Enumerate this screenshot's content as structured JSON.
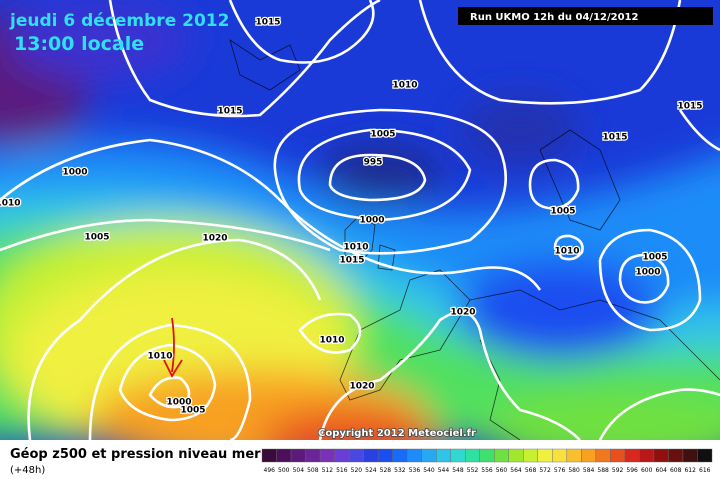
{
  "header": {
    "date": "jeudi 6 décembre 2012",
    "time": "13:00 locale",
    "run": "Run UKMO 12h du 04/12/2012"
  },
  "isobar_labels": [
    "1015",
    "1010",
    "1015",
    "1005",
    "995",
    "1000",
    "1010",
    "1005",
    "1020",
    "1000",
    "1010",
    "1015",
    "1005",
    "1010",
    "1005",
    "1000",
    "1015",
    "1015",
    "1020",
    "1010",
    "1010",
    "1020",
    "1000",
    "1005"
  ],
  "copyright": "Copyright 2012 Meteociel.fr",
  "legend": {
    "title": "Géop z500 et pression niveau mer",
    "lead": "(+48h)",
    "scale": [
      {
        "label": "496",
        "color": "#3a0a3a"
      },
      {
        "label": "500",
        "color": "#4e0e5e"
      },
      {
        "label": "504",
        "color": "#5e1a7a"
      },
      {
        "label": "508",
        "color": "#6a2596"
      },
      {
        "label": "512",
        "color": "#7a30b8"
      },
      {
        "label": "516",
        "color": "#6a3cd8"
      },
      {
        "label": "520",
        "color": "#4a48e0"
      },
      {
        "label": "524",
        "color": "#2a40e0"
      },
      {
        "label": "528",
        "color": "#1a4ef0"
      },
      {
        "label": "532",
        "color": "#1a6af8"
      },
      {
        "label": "536",
        "color": "#1e8cf8"
      },
      {
        "label": "540",
        "color": "#28a8f0"
      },
      {
        "label": "544",
        "color": "#30c4e8"
      },
      {
        "label": "548",
        "color": "#30d8d0"
      },
      {
        "label": "552",
        "color": "#30e0a0"
      },
      {
        "label": "556",
        "color": "#40e070"
      },
      {
        "label": "560",
        "color": "#70e040"
      },
      {
        "label": "564",
        "color": "#a0e830"
      },
      {
        "label": "568",
        "color": "#c8f030"
      },
      {
        "label": "572",
        "color": "#f0f040"
      },
      {
        "label": "576",
        "color": "#f8e040"
      },
      {
        "label": "580",
        "color": "#f8c030"
      },
      {
        "label": "584",
        "color": "#f8a020"
      },
      {
        "label": "588",
        "color": "#f07820"
      },
      {
        "label": "592",
        "color": "#e85020"
      },
      {
        "label": "596",
        "color": "#d82820"
      },
      {
        "label": "600",
        "color": "#b81818"
      },
      {
        "label": "604",
        "color": "#901010"
      },
      {
        "label": "608",
        "color": "#681010"
      },
      {
        "label": "612",
        "color": "#401010"
      },
      {
        "label": "616",
        "color": "#101010"
      }
    ]
  }
}
